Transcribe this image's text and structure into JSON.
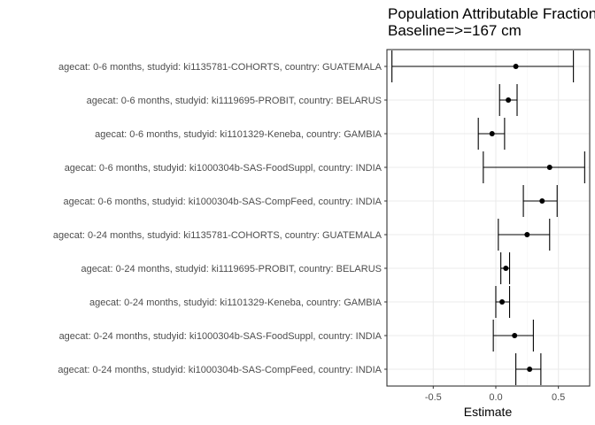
{
  "chart_data": {
    "type": "scatter",
    "title": "Population Attributable Fraction",
    "subtitle": "Baseline=>=167 cm",
    "xlabel": "Estimate",
    "ylabel": "",
    "xlim": [
      -0.87,
      0.75
    ],
    "xticks": [
      -0.5,
      0.0,
      0.5
    ],
    "xtick_labels": [
      "-0.5",
      "0.0",
      "0.5"
    ],
    "grid": true,
    "categories": [
      "agecat: 0-6 months, studyid: ki1135781-COHORTS, country: GUATEMALA",
      "agecat: 0-6 months, studyid: ki1119695-PROBIT, country: BELARUS",
      "agecat: 0-6 months, studyid: ki1101329-Keneba, country: GAMBIA",
      "agecat: 0-6 months, studyid: ki1000304b-SAS-FoodSuppl, country: INDIA",
      "agecat: 0-6 months, studyid: ki1000304b-SAS-CompFeed, country: INDIA",
      "agecat: 0-24 months, studyid: ki1135781-COHORTS, country: GUATEMALA",
      "agecat: 0-24 months, studyid: ki1119695-PROBIT, country: BELARUS",
      "agecat: 0-24 months, studyid: ki1101329-Keneba, country: GAMBIA",
      "agecat: 0-24 months, studyid: ki1000304b-SAS-FoodSuppl, country: INDIA",
      "agecat: 0-24 months, studyid: ki1000304b-SAS-CompFeed, country: INDIA"
    ],
    "series": [
      {
        "estimate": [
          0.16,
          0.1,
          -0.03,
          0.43,
          0.37,
          0.25,
          0.08,
          0.05,
          0.15,
          0.27
        ],
        "lower": [
          -0.83,
          0.03,
          -0.14,
          -0.1,
          0.22,
          0.02,
          0.04,
          0.0,
          -0.02,
          0.16
        ],
        "upper": [
          0.62,
          0.17,
          0.07,
          0.71,
          0.49,
          0.43,
          0.11,
          0.11,
          0.3,
          0.36
        ]
      }
    ],
    "colors": {
      "panel_background": "#ffffff",
      "panel_border": "#333333",
      "grid_major": "#ebebeb",
      "grid_minor": "#f5f5f5",
      "point": "#000000"
    }
  }
}
